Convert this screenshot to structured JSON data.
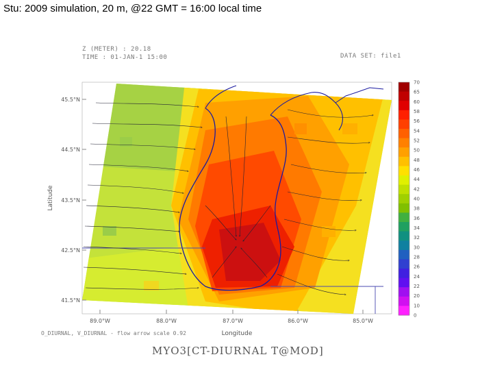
{
  "slide": {
    "title": "Stu: 2009 simulation, 20 m, @22 GMT = 16:00 local time"
  },
  "map": {
    "header_left_line1": "Z (METER) : 20.18",
    "header_left_line2": "TIME : 01-JAN-1 15:00",
    "header_right": "DATA SET: file1",
    "ylabel": "Latitude",
    "xlabel": "Longitude",
    "lat_ticks": [
      "45.5°N",
      "44.5°N",
      "43.5°N",
      "42.5°N",
      "41.5°N"
    ],
    "lon_ticks": [
      "89.0°W",
      "88.0°W",
      "87.0°W",
      "86.0°W",
      "85.0°W"
    ],
    "footer": "O_DIURNAL, V_DIURNAL - flow arrow scale 0.92",
    "bottom_title": "MYO3[CT-DIURNAL T@MOD]",
    "colorbar_labels": [
      "70",
      "65",
      "60",
      "58",
      "56",
      "54",
      "52",
      "50",
      "48",
      "46",
      "44",
      "42",
      "40",
      "38",
      "36",
      "34",
      "32",
      "30",
      "28",
      "26",
      "24",
      "22",
      "20",
      "10",
      "0"
    ],
    "colorbar_colors": [
      "#a00000",
      "#c00000",
      "#e00000",
      "#ff2000",
      "#ff4000",
      "#ff6000",
      "#ff8000",
      "#ffa000",
      "#ffc000",
      "#ffe000",
      "#e0f000",
      "#c0e000",
      "#a0d000",
      "#80c000",
      "#40b040",
      "#20a060",
      "#109080",
      "#1080a0",
      "#2060c0",
      "#3040d0",
      "#4020e0",
      "#6010f0",
      "#a010f0",
      "#d010f0",
      "#ff20ff"
    ]
  }
}
